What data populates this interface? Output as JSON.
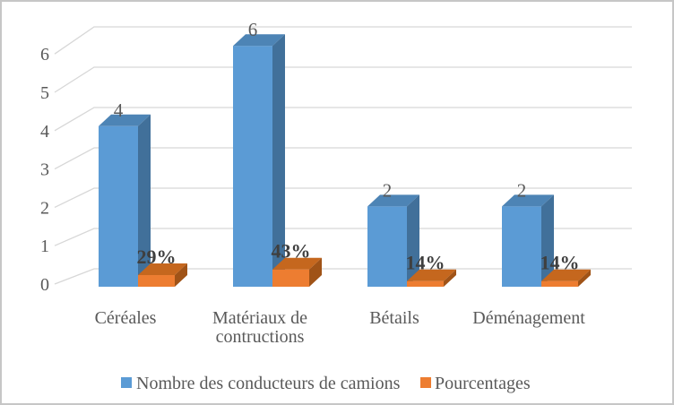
{
  "chart_data": {
    "type": "bar",
    "style": "3d-clustered-column",
    "title": "",
    "categories": [
      "Céréales",
      "Matériaux de contructions",
      "Bétails",
      "Déménagement"
    ],
    "category_lines": [
      [
        "Céréales"
      ],
      [
        "Matériaux de",
        "contructions"
      ],
      [
        "Bétails"
      ],
      [
        "Déménagement"
      ]
    ],
    "series": [
      {
        "name": "Nombre des conducteurs de camions",
        "color": "#5B9BD5",
        "values": [
          4,
          6,
          2,
          2
        ],
        "data_labels": [
          "4",
          "6",
          "2",
          "2"
        ]
      },
      {
        "name": "Pourcentages",
        "color": "#ED7D31",
        "values_percent": [
          29,
          43,
          14,
          14
        ],
        "data_labels": [
          "29%",
          "43%",
          "14%",
          "14%"
        ],
        "plotted_on_value_axis_as_fraction": true
      }
    ],
    "y_axis": {
      "min": 0,
      "max": 6,
      "tick_labels": [
        "0",
        "1",
        "2",
        "3",
        "4",
        "5",
        "6"
      ]
    },
    "grid": true,
    "legend_position": "bottom"
  },
  "colors": {
    "series1_front": "#5B9BD5",
    "series1_top": "#4D84B5",
    "series1_side": "#41709A",
    "series2_front": "#ED7D31",
    "series2_top": "#C5671E",
    "series2_side": "#A05317",
    "gridline": "#D7D7D7",
    "axis_text": "#595959",
    "value_label_text": "#595959",
    "percent_label_text": "#3F3F3F",
    "frame_border": "#C6C6C6"
  }
}
